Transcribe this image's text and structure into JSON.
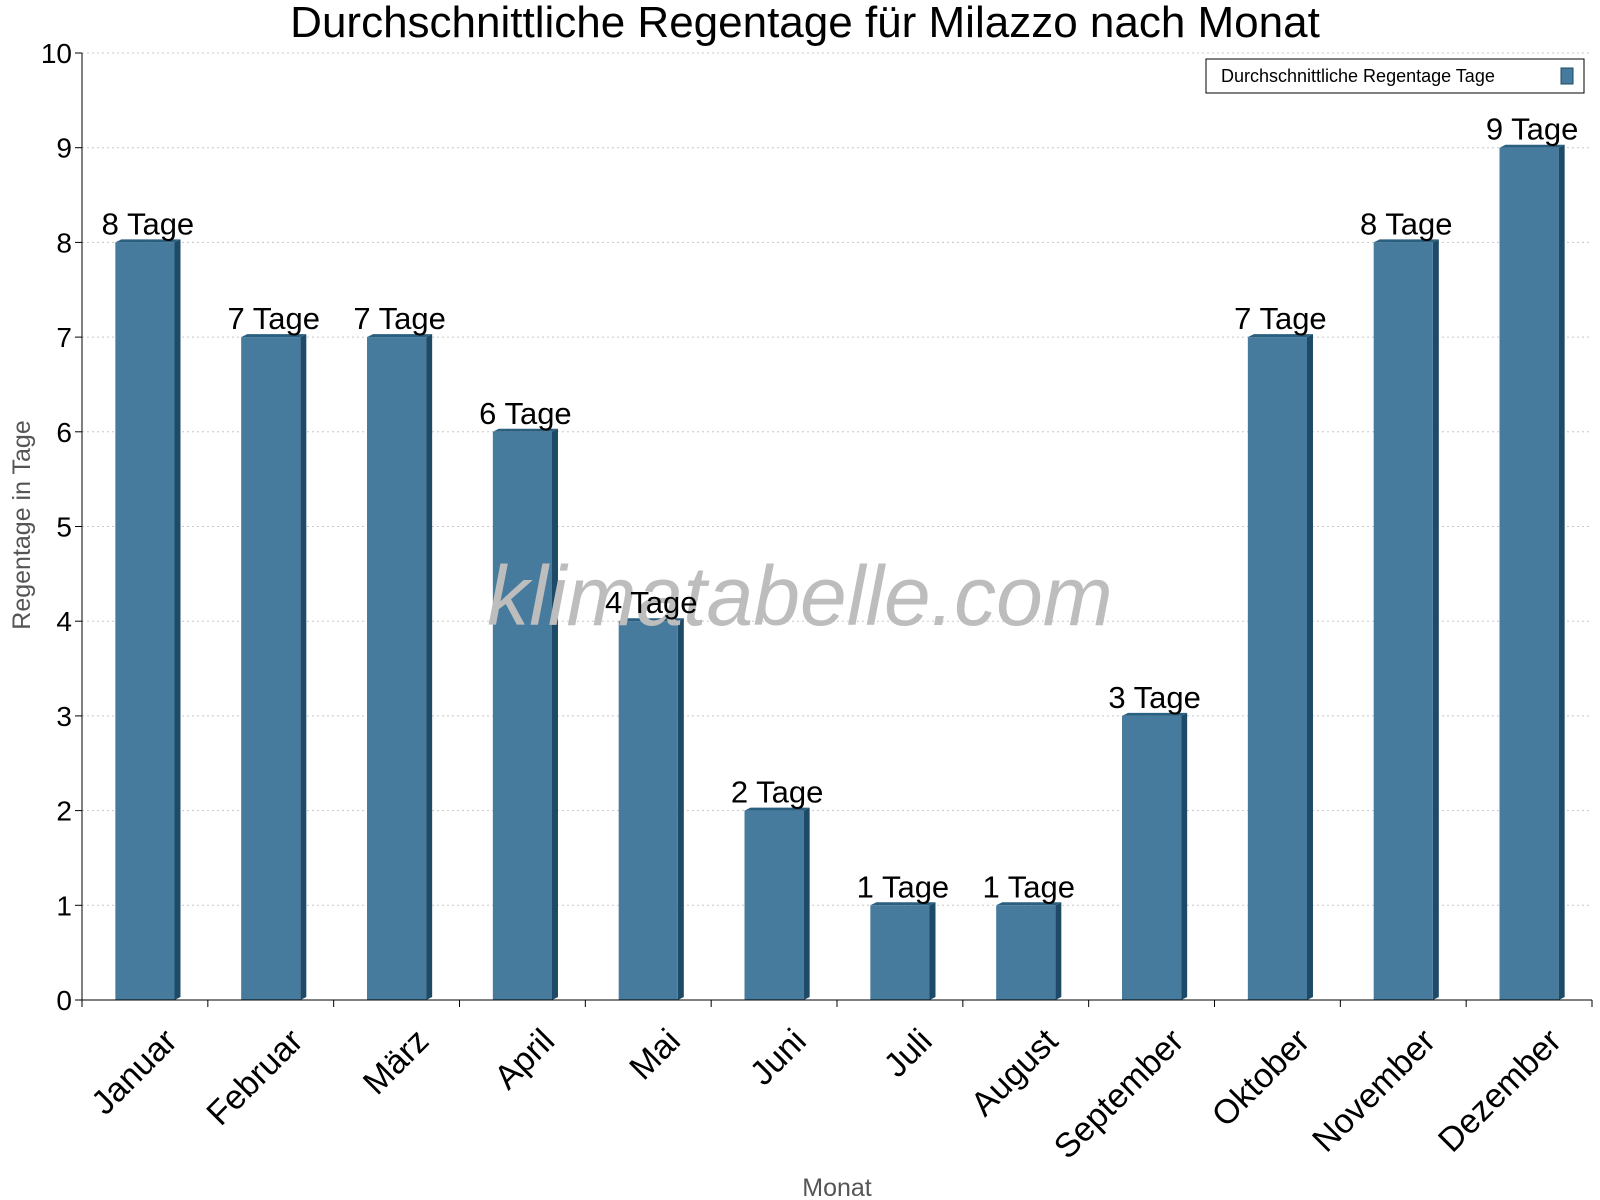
{
  "chart_data": {
    "type": "bar",
    "title": "Durchschnittliche Regentage für Milazzo nach Monat",
    "xlabel": "Monat",
    "ylabel": "Regentage in Tage",
    "ylim": [
      0,
      10
    ],
    "yticks": [
      "0",
      "1",
      "2",
      "3",
      "4",
      "5",
      "6",
      "7",
      "8",
      "9",
      "10"
    ],
    "grid": true,
    "legend_position": "top-right",
    "categories": [
      "Januar",
      "Februar",
      "März",
      "April",
      "Mai",
      "Juni",
      "Juli",
      "August",
      "September",
      "Oktober",
      "November",
      "Dezember"
    ],
    "series": [
      {
        "name": "Durchschnittliche Regentage Tage",
        "color": "#467b9d",
        "values": [
          8,
          7,
          7,
          6,
          4,
          2,
          1,
          1,
          3,
          7,
          8,
          9
        ],
        "labels": [
          "8 Tage",
          "7 Tage",
          "7 Tage",
          "6 Tage",
          "4 Tage",
          "2 Tage",
          "1 Tage",
          "1 Tage",
          "3 Tage",
          "7 Tage",
          "8 Tage",
          "9 Tage"
        ]
      }
    ],
    "watermark": "klimatabelle.com"
  }
}
